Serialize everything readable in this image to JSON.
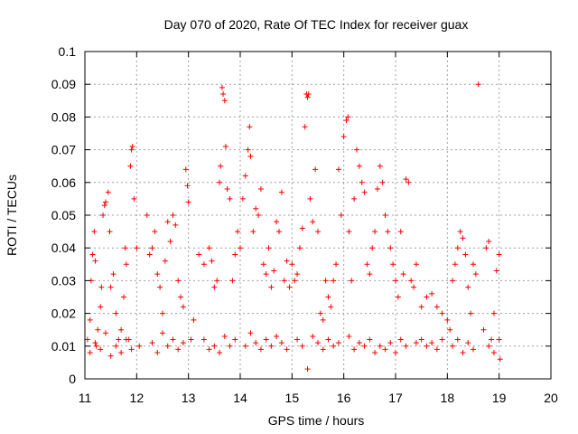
{
  "chart_data": {
    "type": "scatter",
    "title": "Day 070 of 2020, Rate Of TEC Index for receiver guax",
    "xlabel": "GPS time / hours",
    "ylabel": "ROTI / TECUs",
    "xlim": [
      11,
      20
    ],
    "ylim": [
      0,
      0.1
    ],
    "x_ticks": [
      "11",
      "12",
      "13",
      "14",
      "15",
      "16",
      "17",
      "18",
      "19",
      "20"
    ],
    "y_ticks": [
      "0",
      "0.01",
      "0.02",
      "0.03",
      "0.04",
      "0.05",
      "0.06",
      "0.07",
      "0.08",
      "0.09",
      "0.1"
    ],
    "grid": true,
    "marker": "plus",
    "color": "#ff0000",
    "series": [
      {
        "points": [
          [
            11.05,
            0.012
          ],
          [
            11.1,
            0.018
          ],
          [
            11.12,
            0.03
          ],
          [
            11.15,
            0.038
          ],
          [
            11.18,
            0.045
          ],
          [
            11.2,
            0.036
          ],
          [
            11.22,
            0.01
          ],
          [
            11.25,
            0.015
          ],
          [
            11.3,
            0.022
          ],
          [
            11.32,
            0.028
          ],
          [
            11.35,
            0.05
          ],
          [
            11.38,
            0.053
          ],
          [
            11.4,
            0.054
          ],
          [
            11.45,
            0.057
          ],
          [
            11.48,
            0.045
          ],
          [
            11.5,
            0.028
          ],
          [
            11.55,
            0.032
          ],
          [
            11.6,
            0.02
          ],
          [
            11.65,
            0.012
          ],
          [
            11.7,
            0.015
          ],
          [
            11.75,
            0.025
          ],
          [
            11.78,
            0.04
          ],
          [
            11.8,
            0.035
          ],
          [
            11.85,
            0.012
          ],
          [
            11.88,
            0.065
          ],
          [
            11.9,
            0.07
          ],
          [
            11.92,
            0.071
          ],
          [
            11.95,
            0.055
          ],
          [
            12.0,
            0.04
          ],
          [
            12.05,
            0.01
          ],
          [
            12.2,
            0.05
          ],
          [
            12.25,
            0.038
          ],
          [
            12.3,
            0.04
          ],
          [
            12.35,
            0.045
          ],
          [
            12.4,
            0.032
          ],
          [
            12.45,
            0.028
          ],
          [
            12.5,
            0.02
          ],
          [
            12.55,
            0.036
          ],
          [
            12.6,
            0.048
          ],
          [
            12.65,
            0.042
          ],
          [
            12.7,
            0.05
          ],
          [
            12.75,
            0.047
          ],
          [
            12.8,
            0.03
          ],
          [
            12.85,
            0.025
          ],
          [
            12.9,
            0.022
          ],
          [
            12.95,
            0.064
          ],
          [
            12.98,
            0.059
          ],
          [
            13.0,
            0.054
          ],
          [
            13.05,
            0.012
          ],
          [
            13.1,
            0.018
          ],
          [
            13.2,
            0.038
          ],
          [
            13.3,
            0.035
          ],
          [
            13.4,
            0.04
          ],
          [
            13.45,
            0.036
          ],
          [
            13.5,
            0.028
          ],
          [
            13.55,
            0.03
          ],
          [
            13.6,
            0.06
          ],
          [
            13.62,
            0.065
          ],
          [
            13.65,
            0.089
          ],
          [
            13.67,
            0.087
          ],
          [
            13.7,
            0.085
          ],
          [
            13.72,
            0.071
          ],
          [
            13.75,
            0.058
          ],
          [
            13.8,
            0.055
          ],
          [
            13.85,
            0.03
          ],
          [
            13.9,
            0.038
          ],
          [
            13.95,
            0.045
          ],
          [
            14.0,
            0.04
          ],
          [
            14.05,
            0.055
          ],
          [
            14.1,
            0.062
          ],
          [
            14.15,
            0.07
          ],
          [
            14.18,
            0.077
          ],
          [
            14.2,
            0.068
          ],
          [
            14.25,
            0.045
          ],
          [
            14.3,
            0.052
          ],
          [
            14.35,
            0.05
          ],
          [
            14.4,
            0.058
          ],
          [
            14.45,
            0.035
          ],
          [
            14.5,
            0.032
          ],
          [
            14.55,
            0.04
          ],
          [
            14.6,
            0.028
          ],
          [
            14.65,
            0.033
          ],
          [
            14.7,
            0.048
          ],
          [
            14.75,
            0.045
          ],
          [
            14.8,
            0.057
          ],
          [
            14.85,
            0.03
          ],
          [
            14.9,
            0.036
          ],
          [
            14.95,
            0.028
          ],
          [
            15.0,
            0.035
          ],
          [
            15.05,
            0.03
          ],
          [
            15.1,
            0.032
          ],
          [
            15.15,
            0.04
          ],
          [
            15.2,
            0.046
          ],
          [
            15.25,
            0.077
          ],
          [
            15.28,
            0.087
          ],
          [
            15.3,
            0.086
          ],
          [
            15.32,
            0.087
          ],
          [
            15.35,
            0.055
          ],
          [
            15.4,
            0.048
          ],
          [
            15.45,
            0.064
          ],
          [
            15.5,
            0.045
          ],
          [
            15.55,
            0.02
          ],
          [
            15.6,
            0.018
          ],
          [
            15.65,
            0.03
          ],
          [
            15.7,
            0.025
          ],
          [
            15.75,
            0.022
          ],
          [
            15.8,
            0.03
          ],
          [
            15.85,
            0.035
          ],
          [
            15.9,
            0.064
          ],
          [
            15.95,
            0.05
          ],
          [
            16.0,
            0.074
          ],
          [
            16.05,
            0.079
          ],
          [
            16.08,
            0.08
          ],
          [
            16.1,
            0.045
          ],
          [
            16.15,
            0.03
          ],
          [
            16.2,
            0.055
          ],
          [
            16.25,
            0.07
          ],
          [
            16.3,
            0.065
          ],
          [
            16.35,
            0.06
          ],
          [
            16.4,
            0.057
          ],
          [
            16.45,
            0.035
          ],
          [
            16.5,
            0.032
          ],
          [
            16.55,
            0.04
          ],
          [
            16.6,
            0.045
          ],
          [
            16.65,
            0.058
          ],
          [
            16.7,
            0.065
          ],
          [
            16.75,
            0.06
          ],
          [
            16.8,
            0.05
          ],
          [
            16.85,
            0.045
          ],
          [
            16.9,
            0.04
          ],
          [
            16.95,
            0.035
          ],
          [
            17.0,
            0.03
          ],
          [
            17.05,
            0.025
          ],
          [
            17.1,
            0.045
          ],
          [
            17.15,
            0.032
          ],
          [
            17.2,
            0.061
          ],
          [
            17.25,
            0.06
          ],
          [
            17.3,
            0.03
          ],
          [
            17.35,
            0.028
          ],
          [
            17.4,
            0.035
          ],
          [
            17.5,
            0.022
          ],
          [
            17.6,
            0.025
          ],
          [
            17.7,
            0.026
          ],
          [
            17.8,
            0.022
          ],
          [
            17.9,
            0.02
          ],
          [
            18.0,
            0.018
          ],
          [
            18.05,
            0.015
          ],
          [
            18.1,
            0.03
          ],
          [
            18.15,
            0.035
          ],
          [
            18.2,
            0.04
          ],
          [
            18.25,
            0.045
          ],
          [
            18.3,
            0.043
          ],
          [
            18.35,
            0.038
          ],
          [
            18.4,
            0.028
          ],
          [
            18.45,
            0.02
          ],
          [
            18.5,
            0.035
          ],
          [
            18.55,
            0.032
          ],
          [
            18.6,
            0.09
          ],
          [
            18.7,
            0.015
          ],
          [
            18.75,
            0.04
          ],
          [
            18.8,
            0.042
          ],
          [
            18.85,
            0.012
          ],
          [
            18.9,
            0.02
          ],
          [
            18.95,
            0.033
          ],
          [
            19.0,
            0.038
          ],
          [
            19.02,
            0.006
          ],
          [
            11.1,
            0.008
          ],
          [
            11.2,
            0.011
          ],
          [
            11.3,
            0.009
          ],
          [
            11.4,
            0.014
          ],
          [
            11.5,
            0.007
          ],
          [
            11.6,
            0.01
          ],
          [
            11.7,
            0.008
          ],
          [
            11.8,
            0.012
          ],
          [
            11.9,
            0.009
          ],
          [
            12.3,
            0.011
          ],
          [
            12.4,
            0.008
          ],
          [
            12.5,
            0.014
          ],
          [
            12.6,
            0.01
          ],
          [
            12.7,
            0.012
          ],
          [
            12.8,
            0.009
          ],
          [
            12.9,
            0.011
          ],
          [
            13.3,
            0.012
          ],
          [
            13.4,
            0.009
          ],
          [
            13.5,
            0.01
          ],
          [
            13.6,
            0.008
          ],
          [
            13.7,
            0.013
          ],
          [
            13.8,
            0.01
          ],
          [
            13.9,
            0.012
          ],
          [
            14.1,
            0.01
          ],
          [
            14.2,
            0.014
          ],
          [
            14.3,
            0.011
          ],
          [
            14.4,
            0.009
          ],
          [
            14.5,
            0.012
          ],
          [
            14.6,
            0.01
          ],
          [
            14.7,
            0.013
          ],
          [
            14.8,
            0.011
          ],
          [
            14.9,
            0.009
          ],
          [
            15.1,
            0.012
          ],
          [
            15.2,
            0.01
          ],
          [
            15.3,
            0.003
          ],
          [
            15.4,
            0.013
          ],
          [
            15.5,
            0.011
          ],
          [
            15.6,
            0.009
          ],
          [
            15.7,
            0.012
          ],
          [
            15.8,
            0.01
          ],
          [
            15.9,
            0.011
          ],
          [
            16.1,
            0.013
          ],
          [
            16.2,
            0.009
          ],
          [
            16.3,
            0.011
          ],
          [
            16.4,
            0.01
          ],
          [
            16.5,
            0.012
          ],
          [
            16.6,
            0.008
          ],
          [
            16.7,
            0.01
          ],
          [
            16.8,
            0.009
          ],
          [
            16.9,
            0.011
          ],
          [
            17.0,
            0.008
          ],
          [
            17.1,
            0.012
          ],
          [
            17.2,
            0.01
          ],
          [
            17.4,
            0.011
          ],
          [
            17.5,
            0.012
          ],
          [
            17.6,
            0.01
          ],
          [
            17.7,
            0.011
          ],
          [
            17.8,
            0.009
          ],
          [
            17.9,
            0.012
          ],
          [
            18.1,
            0.01
          ],
          [
            18.2,
            0.012
          ],
          [
            18.3,
            0.008
          ],
          [
            18.4,
            0.011
          ],
          [
            18.5,
            0.009
          ],
          [
            18.8,
            0.01
          ],
          [
            18.9,
            0.008
          ],
          [
            19.0,
            0.012
          ]
        ]
      }
    ]
  }
}
